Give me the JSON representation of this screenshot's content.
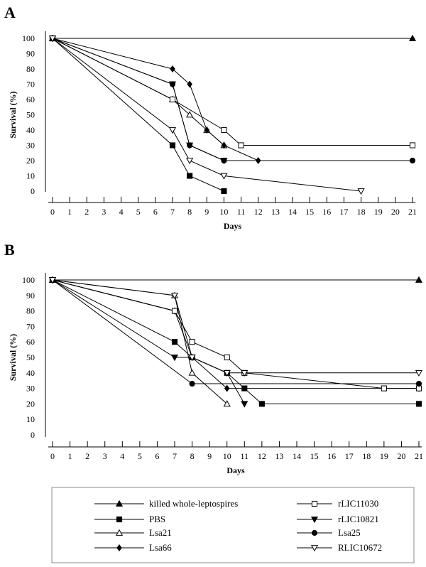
{
  "chart_data": [
    {
      "type": "line",
      "panel_label": "A",
      "xlabel": "Days",
      "ylabel": "Survival (%)",
      "xlim": [
        0,
        21
      ],
      "ylim": [
        0,
        100
      ],
      "x_ticks": [
        0,
        1,
        2,
        3,
        4,
        5,
        6,
        7,
        8,
        9,
        10,
        11,
        12,
        13,
        14,
        15,
        16,
        17,
        18,
        19,
        20,
        21
      ],
      "y_ticks": [
        0,
        10,
        20,
        30,
        40,
        50,
        60,
        70,
        80,
        90,
        100
      ],
      "grid": false,
      "series": [
        {
          "name": "killed whole-leptospires",
          "marker": "triangle-up-filled",
          "points": [
            [
              0,
              100
            ],
            [
              21,
              100
            ]
          ]
        },
        {
          "name": "PBS",
          "marker": "square-filled",
          "points": [
            [
              0,
              100
            ],
            [
              7,
              30
            ],
            [
              8,
              10
            ],
            [
              10,
              0
            ]
          ]
        },
        {
          "name": "Lsa21",
          "marker": "triangle-up-open",
          "points": [
            [
              0,
              100
            ],
            [
              7,
              60
            ],
            [
              8,
              50
            ],
            [
              9,
              40
            ],
            [
              10,
              30
            ]
          ]
        },
        {
          "name": "Lsa66",
          "marker": "diamond-filled",
          "points": [
            [
              0,
              100
            ],
            [
              7,
              80
            ],
            [
              8,
              70
            ],
            [
              9,
              40
            ],
            [
              10,
              30
            ],
            [
              12,
              20
            ]
          ]
        },
        {
          "name": "rLIC11030",
          "marker": "square-open",
          "points": [
            [
              0,
              100
            ],
            [
              7,
              60
            ],
            [
              10,
              40
            ],
            [
              11,
              30
            ],
            [
              21,
              30
            ]
          ]
        },
        {
          "name": "rLIC10821",
          "marker": "triangle-down-filled",
          "points": [
            [
              0,
              100
            ],
            [
              7,
              70
            ],
            [
              8,
              30
            ],
            [
              10,
              20
            ]
          ]
        },
        {
          "name": "Lsa25",
          "marker": "circle-filled",
          "points": [
            [
              0,
              100
            ],
            [
              7,
              70
            ],
            [
              8,
              30
            ],
            [
              10,
              20
            ],
            [
              21,
              20
            ]
          ]
        },
        {
          "name": "RLIC10672",
          "marker": "triangle-down-open",
          "points": [
            [
              0,
              100
            ],
            [
              7,
              40
            ],
            [
              8,
              20
            ],
            [
              10,
              10
            ],
            [
              18,
              0
            ]
          ]
        }
      ]
    },
    {
      "type": "line",
      "panel_label": "B",
      "xlabel": "Days",
      "ylabel": "Survival (%)",
      "xlim": [
        0,
        21
      ],
      "ylim": [
        0,
        100
      ],
      "x_ticks": [
        0,
        1,
        2,
        3,
        4,
        5,
        6,
        7,
        8,
        9,
        10,
        11,
        12,
        13,
        14,
        15,
        16,
        17,
        18,
        19,
        20,
        21
      ],
      "y_ticks": [
        0,
        10,
        20,
        30,
        40,
        50,
        60,
        70,
        80,
        90,
        100
      ],
      "grid": false,
      "series": [
        {
          "name": "killed whole-leptospires",
          "marker": "triangle-up-filled",
          "points": [
            [
              0,
              100
            ],
            [
              21,
              100
            ]
          ]
        },
        {
          "name": "PBS",
          "marker": "square-filled",
          "points": [
            [
              0,
              100
            ],
            [
              7,
              60
            ],
            [
              8,
              50
            ],
            [
              10,
              40
            ],
            [
              11,
              30
            ],
            [
              12,
              20
            ],
            [
              21,
              20
            ]
          ]
        },
        {
          "name": "Lsa21",
          "marker": "triangle-up-open",
          "points": [
            [
              0,
              100
            ],
            [
              7,
              90
            ],
            [
              8,
              40
            ],
            [
              10,
              20
            ]
          ]
        },
        {
          "name": "Lsa66",
          "marker": "diamond-filled",
          "points": [
            [
              0,
              100
            ],
            [
              7,
              80
            ],
            [
              8,
              50
            ],
            [
              10,
              30
            ],
            [
              21,
              30
            ]
          ]
        },
        {
          "name": "rLIC11030",
          "marker": "square-open",
          "points": [
            [
              0,
              100
            ],
            [
              7,
              80
            ],
            [
              8,
              60
            ],
            [
              10,
              50
            ],
            [
              11,
              40
            ],
            [
              19,
              30
            ],
            [
              21,
              30
            ]
          ]
        },
        {
          "name": "rLIC10821",
          "marker": "triangle-down-filled",
          "points": [
            [
              0,
              100
            ],
            [
              7,
              50
            ],
            [
              8,
              50
            ],
            [
              10,
              40
            ],
            [
              11,
              20
            ]
          ]
        },
        {
          "name": "Lsa25",
          "marker": "circle-filled",
          "points": [
            [
              0,
              100
            ],
            [
              8,
              33
            ],
            [
              21,
              33
            ]
          ]
        },
        {
          "name": "RLIC10672",
          "marker": "triangle-down-open",
          "points": [
            [
              0,
              100
            ],
            [
              7,
              90
            ],
            [
              8,
              50
            ],
            [
              10,
              40
            ],
            [
              11,
              40
            ],
            [
              21,
              40
            ]
          ]
        }
      ]
    }
  ],
  "legend": {
    "placement": "bottom",
    "entries": [
      {
        "label": "killed whole-leptospires",
        "marker": "triangle-up-filled"
      },
      {
        "label": "rLIC11030",
        "marker": "square-open"
      },
      {
        "label": "PBS",
        "marker": "square-filled"
      },
      {
        "label": "rLIC10821",
        "marker": "triangle-down-filled"
      },
      {
        "label": "Lsa21",
        "marker": "triangle-up-open"
      },
      {
        "label": "Lsa25",
        "marker": "circle-filled"
      },
      {
        "label": "Lsa66",
        "marker": "diamond-filled"
      },
      {
        "label": "RLIC10672",
        "marker": "triangle-down-open"
      }
    ]
  },
  "colors": {
    "line": "#000000",
    "background": "#ffffff",
    "border": "#8c8c8c"
  }
}
